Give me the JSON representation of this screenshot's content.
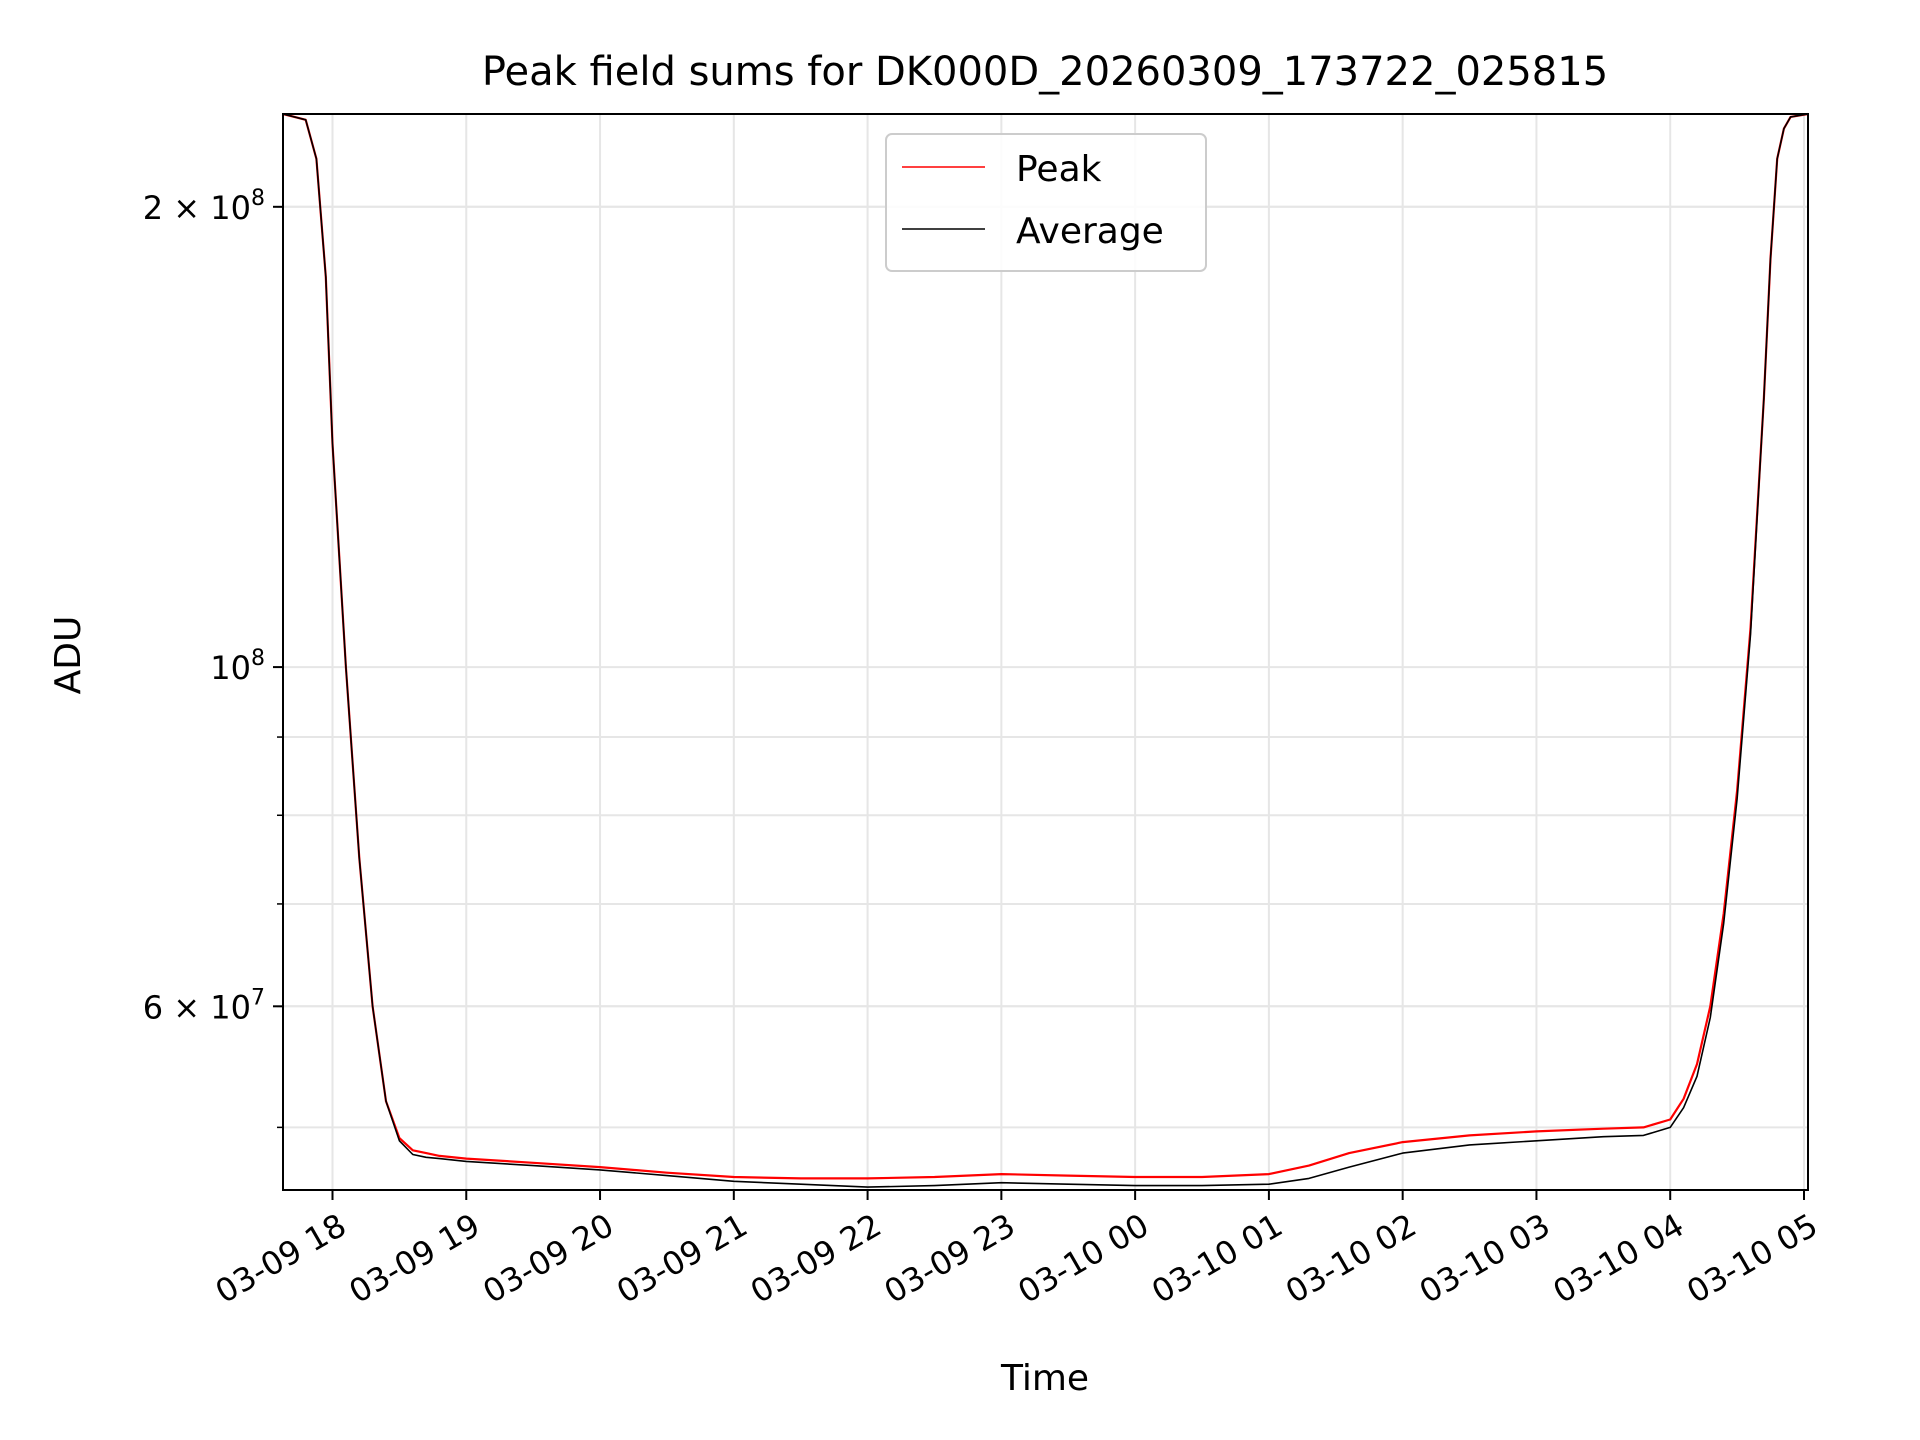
{
  "chart_data": {
    "type": "line",
    "title": "Peak field sums for DK000D_20260309_173722_025815",
    "xlabel": "Time",
    "ylabel": "ADU",
    "y_scale": "log",
    "ylim": [
      45500000,
      230000000
    ],
    "xlim": [
      -0.37,
      11.03
    ],
    "x_unit": "hours since 03-09 18:00",
    "grid": true,
    "legend_position": "top-center",
    "x_ticks": [
      {
        "value": 0,
        "label": "03-09 18"
      },
      {
        "value": 1,
        "label": "03-09 19"
      },
      {
        "value": 2,
        "label": "03-09 20"
      },
      {
        "value": 3,
        "label": "03-09 21"
      },
      {
        "value": 4,
        "label": "03-09 22"
      },
      {
        "value": 5,
        "label": "03-09 23"
      },
      {
        "value": 6,
        "label": "03-10 00"
      },
      {
        "value": 7,
        "label": "03-10 01"
      },
      {
        "value": 8,
        "label": "03-10 02"
      },
      {
        "value": 9,
        "label": "03-10 03"
      },
      {
        "value": 10,
        "label": "03-10 04"
      },
      {
        "value": 11,
        "label": "03-10 05"
      }
    ],
    "y_major_ticks": [
      {
        "value": 60000000,
        "base": "6 × 10",
        "exp": "7"
      },
      {
        "value": 100000000,
        "base": "10",
        "exp": "8"
      },
      {
        "value": 200000000,
        "base": "2 × 10",
        "exp": "8"
      }
    ],
    "y_minor_ticks": [
      50000000,
      60000000,
      70000000,
      80000000,
      90000000,
      200000000
    ],
    "series": [
      {
        "name": "Average",
        "color": "#000000",
        "x": [
          -0.37,
          -0.2,
          -0.12,
          -0.05,
          0.0,
          0.1,
          0.2,
          0.3,
          0.4,
          0.5,
          0.6,
          0.7,
          0.8,
          1.0,
          1.5,
          2.0,
          2.5,
          3.0,
          3.5,
          4.0,
          4.5,
          5.0,
          5.5,
          6.0,
          6.5,
          7.0,
          7.3,
          7.6,
          8.0,
          8.5,
          9.0,
          9.5,
          9.8,
          10.0,
          10.1,
          10.2,
          10.3,
          10.4,
          10.5,
          10.6,
          10.7,
          10.75,
          10.8,
          10.85,
          10.9,
          11.03
        ],
        "values": [
          230000000,
          228000000,
          215000000,
          180000000,
          140000000,
          100000000,
          75000000,
          60000000,
          52000000,
          49000000,
          48000000,
          47800000,
          47700000,
          47500000,
          47200000,
          46900000,
          46500000,
          46100000,
          45900000,
          45700000,
          45800000,
          46000000,
          45900000,
          45800000,
          45800000,
          45900000,
          46300000,
          47100000,
          48100000,
          48700000,
          49000000,
          49300000,
          49400000,
          50000000,
          51500000,
          54000000,
          59000000,
          68000000,
          82000000,
          105000000,
          150000000,
          185000000,
          215000000,
          225000000,
          229000000,
          230000000
        ]
      },
      {
        "name": "Peak",
        "color": "#ff0000",
        "x": [
          -0.37,
          -0.2,
          -0.12,
          -0.05,
          0.0,
          0.1,
          0.2,
          0.3,
          0.4,
          0.5,
          0.6,
          0.7,
          0.8,
          1.0,
          1.5,
          2.0,
          2.5,
          3.0,
          3.5,
          4.0,
          4.5,
          5.0,
          5.5,
          6.0,
          6.5,
          7.0,
          7.3,
          7.6,
          8.0,
          8.5,
          9.0,
          9.5,
          9.8,
          10.0,
          10.1,
          10.2,
          10.3,
          10.4,
          10.5,
          10.6,
          10.7,
          10.75,
          10.8,
          10.85,
          10.9,
          11.03
        ],
        "values": [
          230000000,
          228000000,
          215000000,
          180000000,
          140000000,
          100000000,
          75000000,
          60000000,
          52000000,
          49200000,
          48300000,
          48100000,
          47900000,
          47700000,
          47400000,
          47100000,
          46700000,
          46400000,
          46300000,
          46300000,
          46400000,
          46600000,
          46500000,
          46400000,
          46400000,
          46600000,
          47200000,
          48100000,
          48900000,
          49400000,
          49700000,
          49900000,
          50000000,
          50600000,
          52200000,
          55000000,
          60000000,
          69000000,
          83000000,
          106000000,
          150000000,
          185000000,
          215000000,
          225000000,
          229000000,
          230000000
        ]
      }
    ]
  }
}
